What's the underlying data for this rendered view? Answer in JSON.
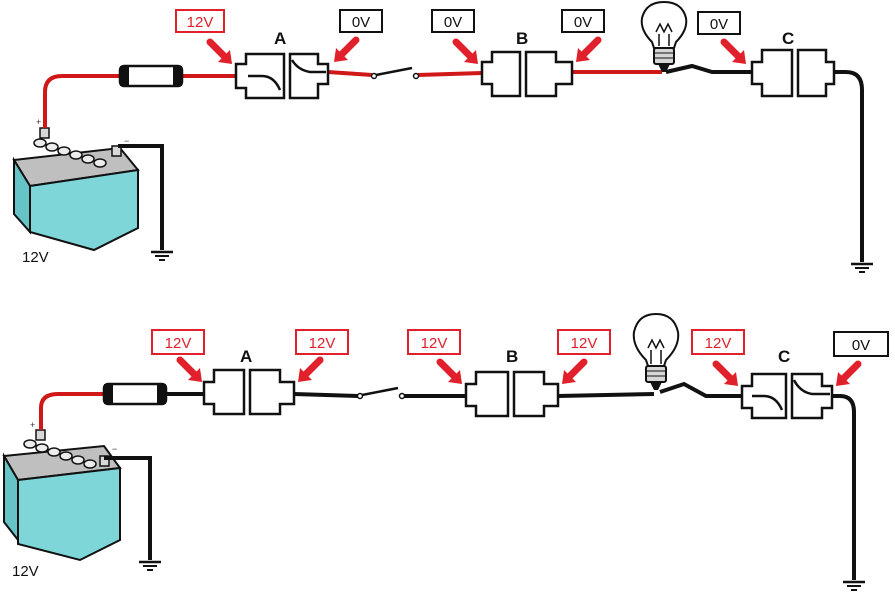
{
  "colors": {
    "live": "#d01818",
    "dead": "#111111",
    "battery": "#7fd6d8",
    "callout_red": "#e0202a"
  },
  "diagram_top": {
    "battery_label": "12V",
    "connectors": {
      "A": "A",
      "B": "B",
      "C": "C"
    },
    "callouts": [
      "12V",
      "0V",
      "0V",
      "0V",
      "0V"
    ],
    "state": "open circuit at connector A"
  },
  "diagram_bottom": {
    "battery_label": "12V",
    "connectors": {
      "A": "A",
      "B": "B",
      "C": "C"
    },
    "callouts": [
      "12V",
      "12V",
      "12V",
      "12V",
      "12V",
      "0V"
    ],
    "state": "open circuit at connector C"
  },
  "icons": [
    "battery-icon",
    "fuse-icon",
    "switch-icon",
    "bulb-icon",
    "ground-icon",
    "arrow-icon"
  ]
}
